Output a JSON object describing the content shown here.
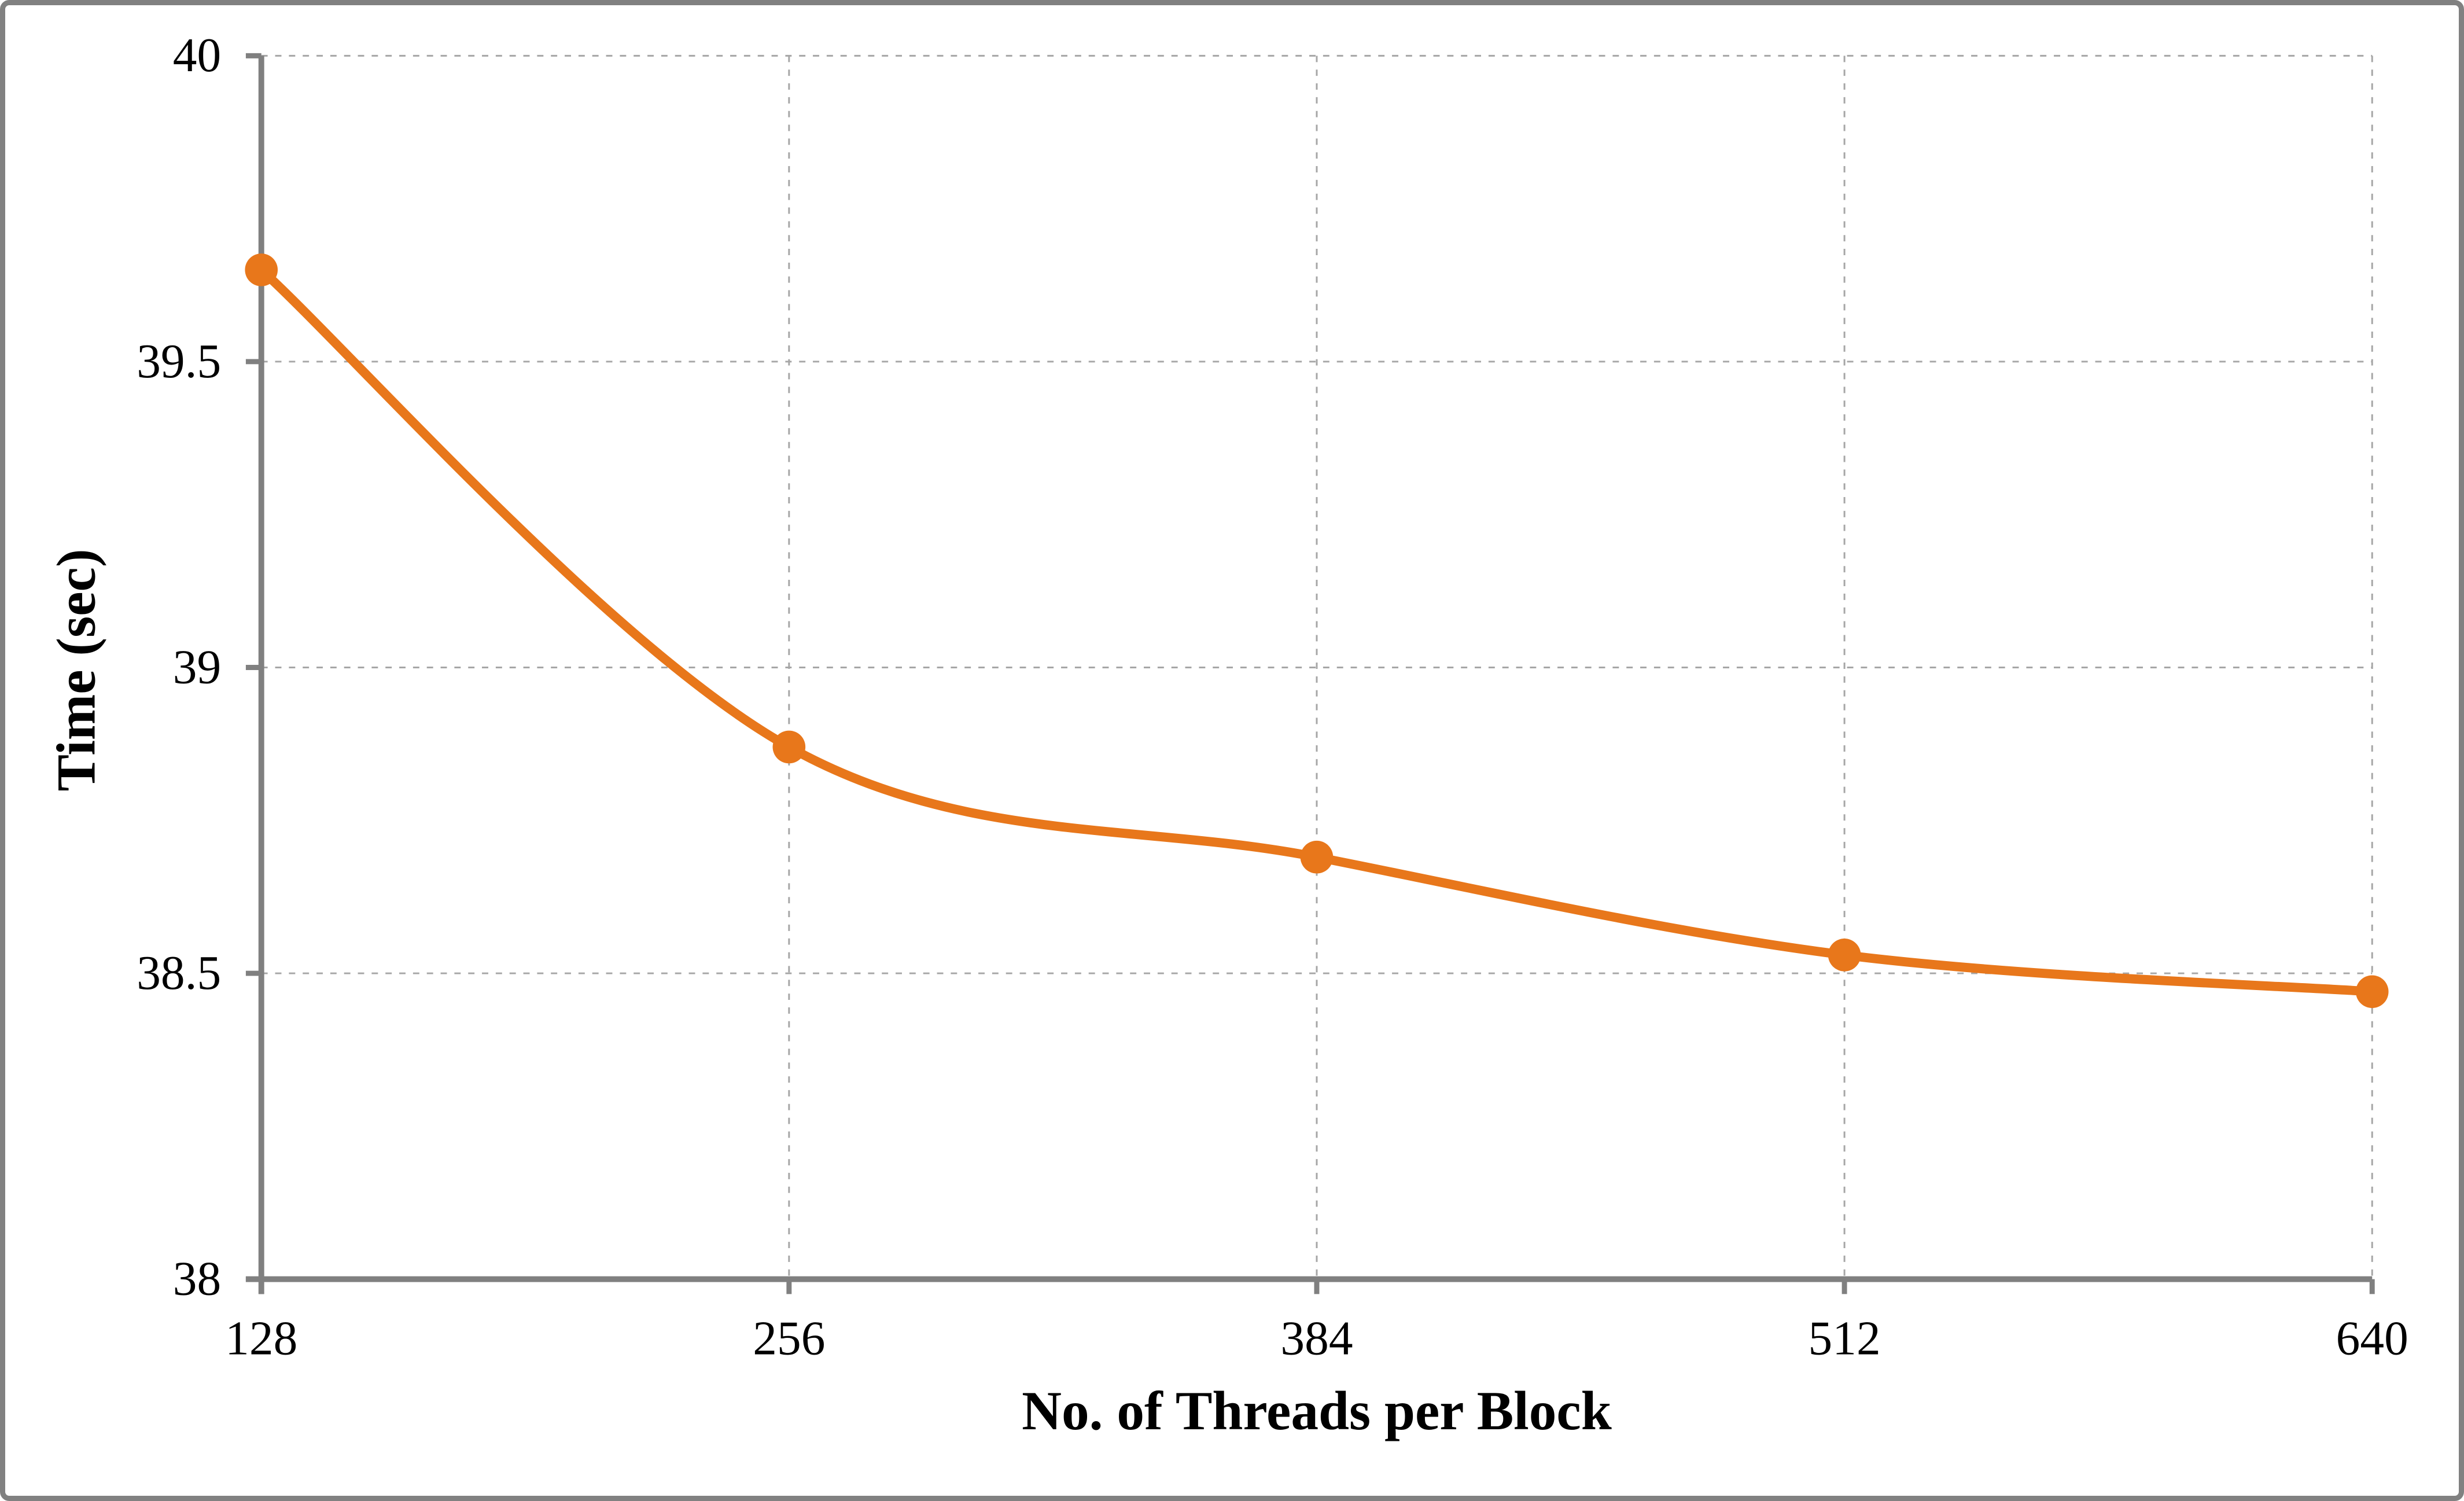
{
  "window": {
    "background": "#FFFFFF",
    "frame_color": "#818181"
  },
  "chart_data": {
    "type": "line",
    "title": "",
    "xlabel": "No. of Threads per Block",
    "ylabel": "Time (sec)",
    "categories": [
      128,
      256,
      384,
      512,
      640
    ],
    "x_tick_labels": [
      "128",
      "256",
      "384",
      "512",
      "640"
    ],
    "series": [
      {
        "name": "Time (sec)",
        "values": [
          39.65,
          38.87,
          38.69,
          38.53,
          38.47
        ]
      }
    ],
    "ylim": [
      38,
      40
    ],
    "y_ticks": [
      40,
      39.5,
      39,
      38.5,
      38
    ],
    "y_tick_labels": [
      "40",
      "39.5",
      "39",
      "38.5",
      "38"
    ],
    "legend_position": "none",
    "grid": "dashed horizontal and vertical gridlines",
    "smoothed_line": true,
    "line_color": "#E8771B",
    "marker": "circle",
    "axis_color": "#808080",
    "gridline_color": "#A6A6A6",
    "text_color": "#000000"
  }
}
